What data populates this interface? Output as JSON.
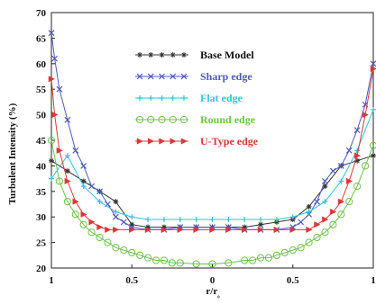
{
  "chart_data": {
    "type": "line",
    "xlabel": "r/r₀",
    "ylabel": "Turbulent Intensity (%)",
    "x_tick_labels": [
      "1",
      "0.5",
      "0",
      "0.5",
      "1"
    ],
    "x_tick_values": [
      -1,
      -0.5,
      0,
      0.5,
      1
    ],
    "xlim": [
      -1,
      1
    ],
    "ylim": [
      20,
      70
    ],
    "y_ticks": [
      20,
      25,
      30,
      35,
      40,
      45,
      50,
      55,
      60,
      65,
      70
    ],
    "grid": false,
    "legend_position": "upper-center",
    "series": [
      {
        "name": "Base Model",
        "color": "#333333",
        "marker": "star",
        "x": [
          -1.0,
          -0.9,
          -0.8,
          -0.7,
          -0.6,
          -0.5,
          -0.4,
          -0.3,
          -0.2,
          -0.1,
          0.0,
          0.1,
          0.2,
          0.3,
          0.4,
          0.5,
          0.6,
          0.7,
          0.8,
          0.9,
          1.0
        ],
        "y": [
          41.0,
          39.0,
          37.0,
          35.0,
          33.0,
          28.5,
          28.0,
          28.0,
          28.0,
          28.0,
          28.0,
          28.0,
          28.0,
          28.5,
          29.0,
          29.5,
          32.0,
          36.0,
          40.0,
          41.0,
          42.0
        ]
      },
      {
        "name": "Sharp edge",
        "color": "#4d5bb8",
        "marker": "x",
        "x": [
          -1.0,
          -0.98,
          -0.95,
          -0.9,
          -0.85,
          -0.8,
          -0.75,
          -0.7,
          -0.65,
          -0.6,
          -0.55,
          -0.5,
          -0.4,
          -0.3,
          -0.2,
          -0.1,
          0.0,
          0.1,
          0.2,
          0.3,
          0.4,
          0.5,
          0.55,
          0.6,
          0.65,
          0.7,
          0.75,
          0.8,
          0.85,
          0.9,
          0.95,
          1.0
        ],
        "y": [
          66.0,
          61.0,
          55.0,
          49.0,
          43.0,
          40.0,
          36.0,
          35.0,
          32.5,
          30.0,
          29.0,
          28.0,
          27.5,
          27.5,
          28.0,
          28.0,
          28.0,
          28.0,
          27.5,
          27.5,
          27.5,
          28.0,
          29.0,
          30.5,
          33.0,
          37.0,
          39.0,
          40.0,
          43.0,
          47.0,
          52.0,
          60.0
        ]
      },
      {
        "name": "Flat edge",
        "color": "#33c2e0",
        "marker": "plus",
        "x": [
          -1.0,
          -0.9,
          -0.8,
          -0.7,
          -0.6,
          -0.5,
          -0.4,
          -0.3,
          -0.2,
          -0.1,
          0.0,
          0.1,
          0.2,
          0.3,
          0.4,
          0.5,
          0.6,
          0.7,
          0.8,
          0.9,
          1.0
        ],
        "y": [
          37.5,
          42.0,
          36.0,
          33.0,
          31.0,
          30.0,
          29.5,
          29.5,
          29.5,
          29.5,
          29.5,
          29.5,
          29.5,
          29.5,
          29.5,
          30.0,
          31.0,
          33.0,
          37.0,
          43.0,
          51.0
        ]
      },
      {
        "name": "Round edge",
        "color": "#6cc24a",
        "marker": "circle",
        "x": [
          -1.0,
          -0.95,
          -0.9,
          -0.85,
          -0.8,
          -0.75,
          -0.7,
          -0.65,
          -0.6,
          -0.55,
          -0.5,
          -0.45,
          -0.4,
          -0.35,
          -0.3,
          -0.25,
          -0.2,
          -0.1,
          0.0,
          0.1,
          0.2,
          0.25,
          0.3,
          0.35,
          0.4,
          0.45,
          0.5,
          0.55,
          0.6,
          0.65,
          0.7,
          0.75,
          0.8,
          0.85,
          0.9,
          0.95,
          1.0
        ],
        "y": [
          45.0,
          37.0,
          33.0,
          30.5,
          28.5,
          27.0,
          26.0,
          25.0,
          24.0,
          23.5,
          23.0,
          22.5,
          22.0,
          21.5,
          21.5,
          21.0,
          21.0,
          20.8,
          20.8,
          21.0,
          21.5,
          21.5,
          22.0,
          22.0,
          22.5,
          23.0,
          23.5,
          24.0,
          25.0,
          26.0,
          27.0,
          28.5,
          30.5,
          33.0,
          36.0,
          40.0,
          44.0
        ]
      },
      {
        "name": "U-Type edge",
        "color": "#d83a3a",
        "marker": "triangle-right",
        "x": [
          -1.0,
          -0.98,
          -0.95,
          -0.9,
          -0.85,
          -0.8,
          -0.75,
          -0.7,
          -0.65,
          -0.6,
          -0.5,
          -0.4,
          -0.3,
          -0.2,
          -0.1,
          0.0,
          0.1,
          0.2,
          0.3,
          0.4,
          0.5,
          0.6,
          0.65,
          0.7,
          0.75,
          0.8,
          0.85,
          0.9,
          0.95,
          1.0
        ],
        "y": [
          57.0,
          50.0,
          43.0,
          37.0,
          33.0,
          30.5,
          29.0,
          28.0,
          27.5,
          27.5,
          27.5,
          27.5,
          27.5,
          27.5,
          27.5,
          27.5,
          27.5,
          27.5,
          27.5,
          27.5,
          27.5,
          27.5,
          28.5,
          29.5,
          31.0,
          33.0,
          37.0,
          42.0,
          50.0,
          59.0
        ]
      }
    ]
  }
}
